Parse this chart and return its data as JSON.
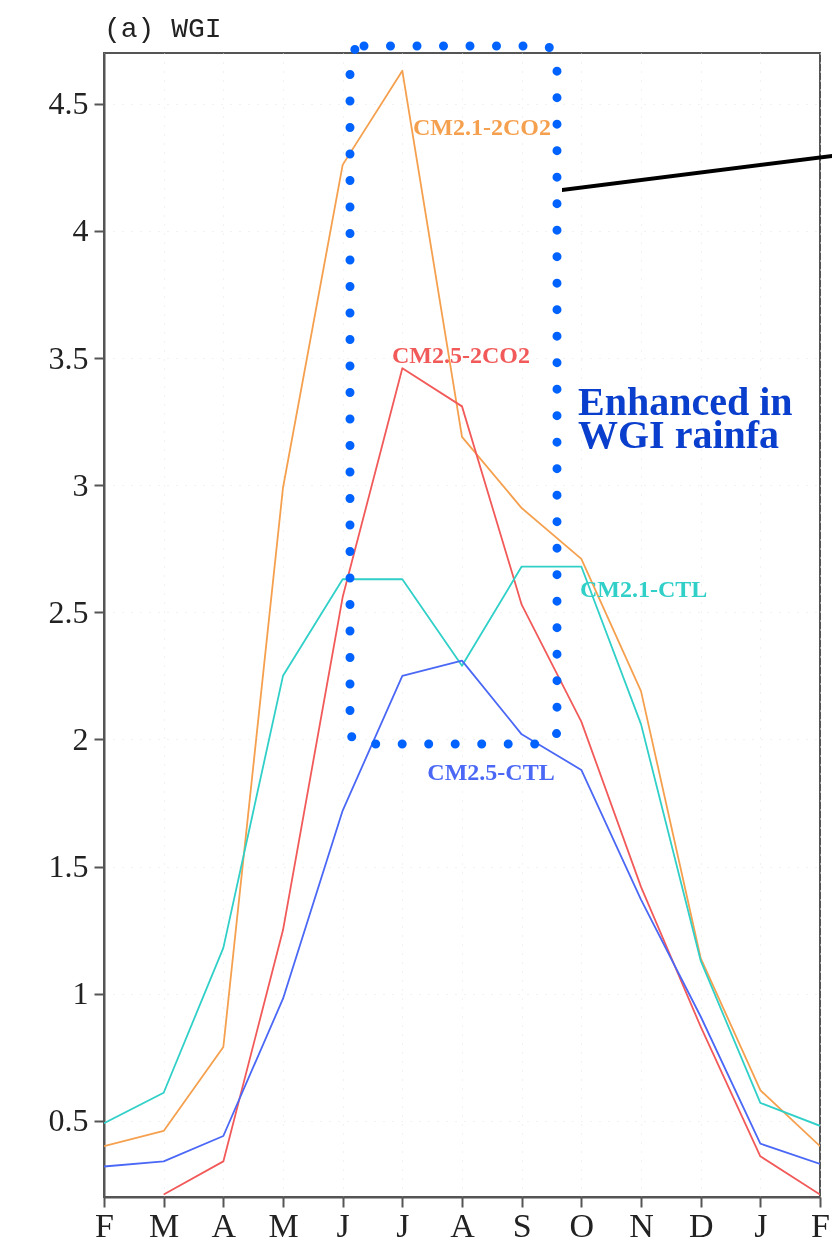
{
  "chart_data": {
    "type": "line",
    "title": "(a) WGI",
    "categories": [
      "F",
      "M",
      "A",
      "M",
      "J",
      "J",
      "A",
      "S",
      "O",
      "N",
      "D",
      "J",
      "F"
    ],
    "series": [
      {
        "name": "CM2.1-2CO2",
        "color": "#f5a04e",
        "values": [
          0.4,
          0.46,
          0.79,
          2.99,
          4.26,
          4.63,
          3.19,
          2.91,
          2.71,
          2.19,
          1.14,
          0.62,
          0.4
        ]
      },
      {
        "name": "CM2.5-2CO2",
        "color": "#f25a5a",
        "values": [
          null,
          0.21,
          0.34,
          1.25,
          2.56,
          3.46,
          3.31,
          2.53,
          2.07,
          1.42,
          0.87,
          0.36,
          0.21
        ]
      },
      {
        "name": "CM2.1-CTL",
        "color": "#30d0c8",
        "values": [
          0.49,
          0.61,
          1.18,
          2.25,
          2.63,
          2.63,
          2.29,
          2.68,
          2.68,
          2.06,
          1.13,
          0.57,
          0.48
        ]
      },
      {
        "name": "CM2.5-CTL",
        "color": "#4a68f5",
        "values": [
          0.32,
          0.34,
          0.44,
          0.98,
          1.72,
          2.25,
          2.31,
          2.02,
          1.88,
          1.37,
          0.91,
          0.41,
          0.33
        ]
      }
    ],
    "ylim": [
      0.2,
      4.7
    ],
    "yticks": [
      0.5,
      1,
      1.5,
      2,
      2.5,
      3,
      3.5,
      4,
      4.5
    ],
    "grid": true,
    "legend": false,
    "marker": "none",
    "line_style": "solid",
    "annotations": [
      "Enhanced in",
      "WGI rainfa"
    ]
  }
}
